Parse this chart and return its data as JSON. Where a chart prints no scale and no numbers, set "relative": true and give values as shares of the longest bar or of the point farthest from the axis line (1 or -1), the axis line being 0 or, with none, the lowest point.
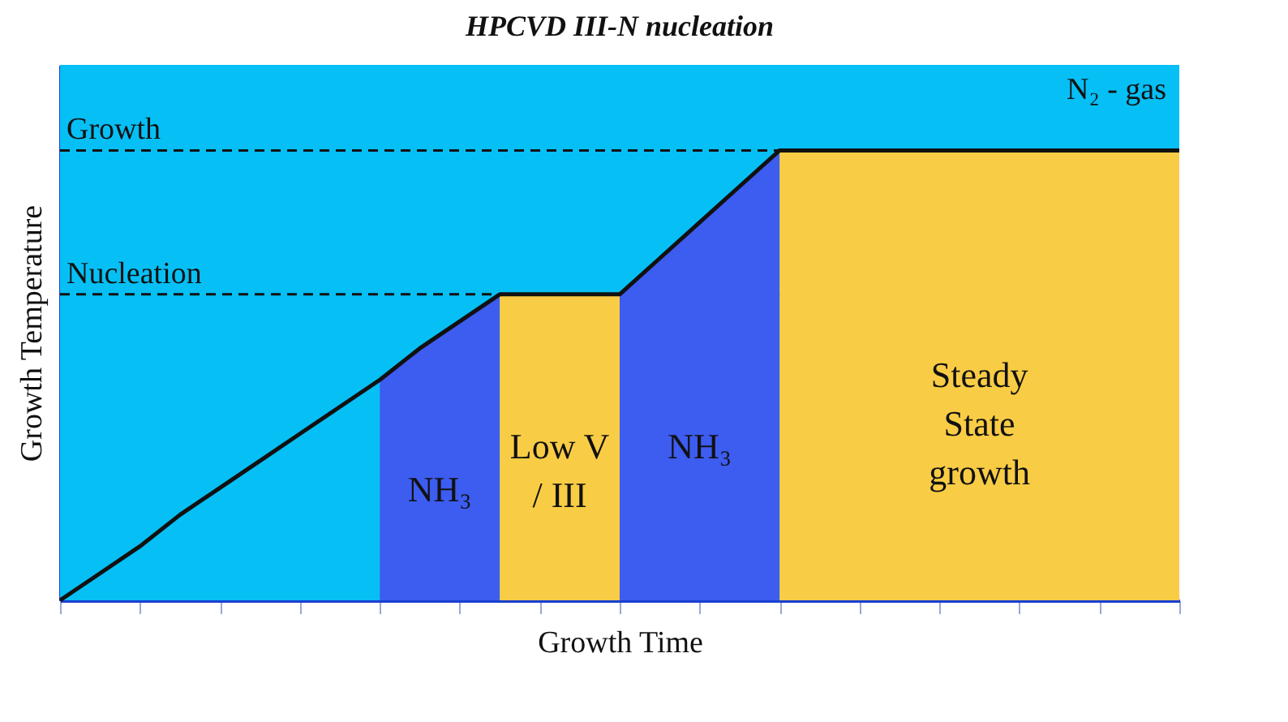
{
  "chart_data": {
    "type": "line",
    "title": "HPCVD III-N nucleation",
    "xlabel": "Growth Time",
    "ylabel": "Growth Temperature",
    "relative": true,
    "grid": false,
    "marker": "none",
    "line_style": "solid",
    "categories": [
      null,
      null,
      null,
      null,
      null,
      null,
      null,
      null,
      null,
      null,
      null,
      null,
      null,
      null,
      null,
      null,
      null,
      null,
      null,
      null,
      null,
      null,
      null,
      null,
      null,
      null,
      null,
      null,
      null
    ],
    "series": [
      {
        "type": "area",
        "name": "NH₃",
        "color": "#3d5cf0",
        "values": [
          null,
          null,
          null,
          null,
          null,
          null,
          null,
          null,
          0.49,
          0.56,
          0.62,
          0.68,
          null,
          null,
          null,
          null,
          null,
          null,
          null,
          null,
          null,
          null,
          null,
          null,
          null,
          null,
          null,
          null,
          null
        ]
      },
      {
        "type": "area",
        "name": "Low V / III",
        "color": "#f9cc45",
        "values": [
          null,
          null,
          null,
          null,
          null,
          null,
          null,
          null,
          null,
          null,
          null,
          0.68,
          0.68,
          0.68,
          0.68,
          null,
          null,
          null,
          null,
          null,
          null,
          null,
          null,
          null,
          null,
          null,
          null,
          null,
          null
        ]
      },
      {
        "type": "area",
        "name": "NH₃",
        "color": "#3d5cf0",
        "values": [
          null,
          null,
          null,
          null,
          null,
          null,
          null,
          null,
          null,
          null,
          null,
          null,
          null,
          null,
          0.68,
          0.76,
          0.84,
          0.92,
          1,
          null,
          null,
          null,
          null,
          null,
          null,
          null,
          null,
          null,
          null
        ]
      },
      {
        "type": "area",
        "name": "Steady State growth",
        "color": "#f9cc45",
        "values": [
          null,
          null,
          null,
          null,
          null,
          null,
          null,
          null,
          null,
          null,
          null,
          null,
          null,
          null,
          null,
          null,
          null,
          null,
          1,
          1,
          1,
          1,
          1,
          1,
          1,
          1,
          1,
          1,
          1
        ]
      },
      {
        "color": "#111111",
        "values": [
          0,
          0.06,
          0.12,
          0.19,
          0.25,
          0.31,
          0.37,
          0.43,
          0.49,
          0.56,
          0.62,
          0.68,
          0.68,
          0.68,
          0.68,
          0.76,
          0.84,
          0.92,
          1,
          1,
          1,
          1,
          1,
          1,
          1,
          1,
          1,
          1,
          1
        ]
      }
    ],
    "bands": [
      {
        "axis": "y",
        "from": 0,
        "to": 1.19,
        "label": "N₂ - gas",
        "color": "#06bff5"
      }
    ],
    "ref_lines": [
      {
        "axis": "y",
        "value": 1,
        "label": "Growth",
        "line_style": "dashed",
        "color": "#111111"
      },
      {
        "axis": "y",
        "value": 0.68,
        "label": "Nucleation",
        "line_style": "dashed",
        "color": "#111111"
      }
    ]
  }
}
